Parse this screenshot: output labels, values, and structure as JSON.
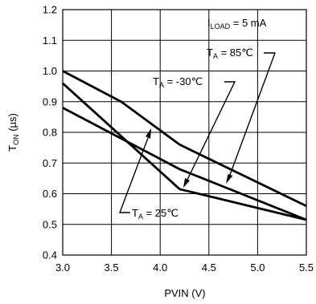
{
  "chart_data": {
    "type": "line",
    "xlabel": "PVIN (V)",
    "ylabel": "T",
    "ylabel_sub": "ON",
    "ylabel_unit": " (µs)",
    "xlim": [
      3.0,
      5.5
    ],
    "ylim": [
      0.4,
      1.2
    ],
    "x_ticks": [
      "3.0",
      "3.5",
      "4.0",
      "4.5",
      "5.0",
      "5.5"
    ],
    "y_ticks": [
      "0.4",
      "0.5",
      "0.6",
      "0.7",
      "0.8",
      "0.9",
      "1.0",
      "1.1",
      "1.2"
    ],
    "grid": true,
    "annotation_load": {
      "main": "I",
      "sub": "LOAD",
      "rest": " = 5 mA"
    },
    "series": [
      {
        "name": "TA = 85℃",
        "label_main": "T",
        "label_sub": "A",
        "label_rest": " = 85℃",
        "points": [
          [
            3.0,
            1.0
          ],
          [
            3.6,
            0.9
          ],
          [
            4.2,
            0.76
          ],
          [
            5.5,
            0.56
          ]
        ]
      },
      {
        "name": "TA = -30℃",
        "label_main": "T",
        "label_sub": "A",
        "label_rest": " = -30℃",
        "points": [
          [
            3.0,
            0.96
          ],
          [
            4.2,
            0.615
          ],
          [
            5.5,
            0.515
          ]
        ]
      },
      {
        "name": "TA = 25℃",
        "label_main": "T",
        "label_sub": "A",
        "label_rest": " = 25℃",
        "points": [
          [
            3.0,
            0.88
          ],
          [
            4.2,
            0.68
          ],
          [
            5.5,
            0.515
          ]
        ]
      }
    ]
  }
}
